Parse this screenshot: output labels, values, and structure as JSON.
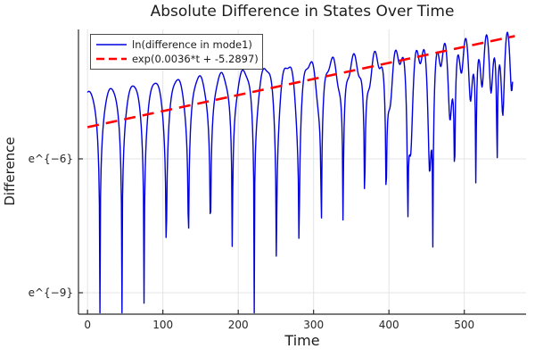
{
  "title": "Absolute Difference in States Over Time",
  "chart_data": {
    "type": "line",
    "title": "Absolute Difference in States Over Time",
    "xlabel": "Time",
    "ylabel": "Difference",
    "yscale": "ln",
    "grid": true,
    "legend_position": "top-left",
    "xlim": [
      -12,
      582
    ],
    "ylim_ln": [
      -9.48,
      -3.1
    ],
    "xticks": [
      0,
      100,
      200,
      300,
      400,
      500
    ],
    "yticks": [
      {
        "value": -6,
        "label": "e^{−6}"
      },
      {
        "value": -9,
        "label": "e^{−9}"
      }
    ],
    "series": [
      {
        "name": "ln(difference in mode1)",
        "color": "#0000e0",
        "style": "solid",
        "line_width": 1.4,
        "description": "Natural log of absolute difference in mode 1 between two trajectories: oscillation with sharp cusp minima at zero crossings; cusp depth shrinks and a faster ripple grows over time; envelope grows roughly exponentially from ~e^-4.5 at t=0 to ~e^-3.2 at t=560.",
        "model": {
          "fit_slope": 0.0036,
          "fit_intercept": -5.2897,
          "offset0": 0.8,
          "offset_slope": 0.0012,
          "w1": 0.1072,
          "phi1": 1.372,
          "w2": 0.571,
          "phi2": 0.8,
          "r0": 0.009,
          "r_growth": 0.0072,
          "t_start": 0,
          "t_end": 564,
          "dt": 0.75,
          "clip_min": -9.45
        }
      },
      {
        "name": "exp(0.0036*t + -5.2897)",
        "color": "#ff0000",
        "style": "dashed",
        "line_width": 2.6,
        "dash": "13 8",
        "fit": {
          "slope": 0.0036,
          "intercept": -5.2897,
          "t_start": 0,
          "t_end": 567
        }
      }
    ],
    "grid_color": "#e4e4e4",
    "axis_color": "#2b2b2b"
  }
}
